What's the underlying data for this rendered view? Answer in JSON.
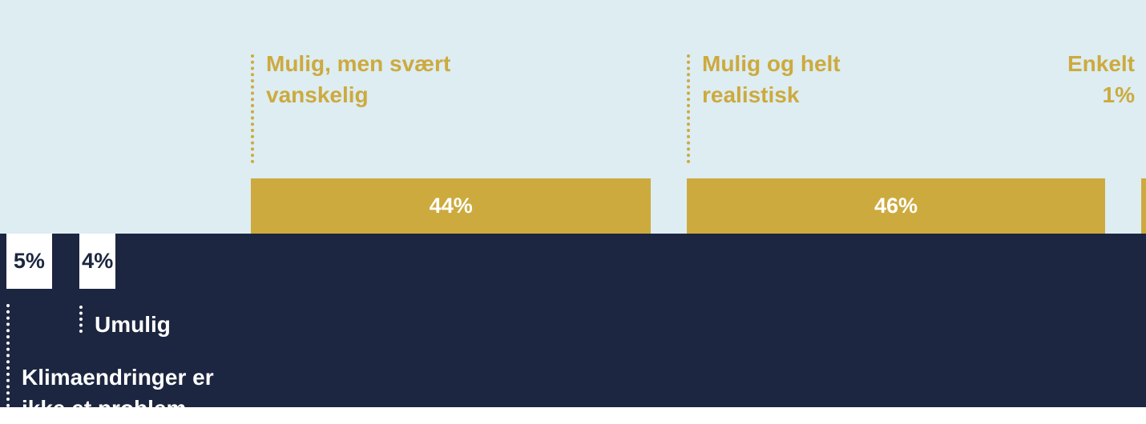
{
  "chart_data": {
    "type": "bar",
    "categories": [
      "Klimaendringer er ikke et problem",
      "Umulig",
      "Mulig, men svært vanskelig",
      "Mulig og helt realistisk",
      "Enkelt"
    ],
    "values": [
      5,
      4,
      44,
      46,
      1
    ],
    "value_labels": [
      "5%",
      "4%",
      "44%",
      "46%",
      "1%"
    ],
    "colors": [
      "#ffffff",
      "#ffffff",
      "#cdaa3e",
      "#cdaa3e",
      "#cdaa3e"
    ]
  }
}
